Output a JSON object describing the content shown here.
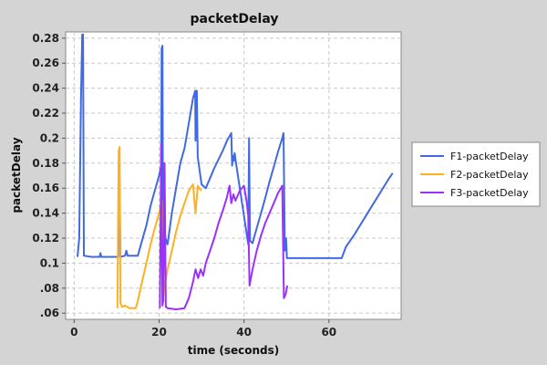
{
  "chart_data": {
    "type": "line",
    "title": "packetDelay",
    "xlabel": "time (seconds)",
    "ylabel": "packetDelay",
    "xlim": [
      -2,
      77
    ],
    "ylim": [
      0.055,
      0.285
    ],
    "x_ticks": [
      {
        "value": 0,
        "label": "0"
      },
      {
        "value": 20,
        "label": "20"
      },
      {
        "value": 40,
        "label": "40"
      },
      {
        "value": 60,
        "label": "60"
      }
    ],
    "y_ticks": [
      {
        "value": 0.06,
        "label": ".06"
      },
      {
        "value": 0.08,
        "label": ".08"
      },
      {
        "value": 0.1,
        "label": "0.1"
      },
      {
        "value": 0.12,
        "label": "0.12"
      },
      {
        "value": 0.14,
        "label": "0.14"
      },
      {
        "value": 0.16,
        "label": "0.16"
      },
      {
        "value": 0.18,
        "label": "0.18"
      },
      {
        "value": 0.2,
        "label": "0.2"
      },
      {
        "value": 0.22,
        "label": "0.22"
      },
      {
        "value": 0.24,
        "label": "0.24"
      },
      {
        "value": 0.26,
        "label": "0.26"
      },
      {
        "value": 0.28,
        "label": "0.28"
      }
    ],
    "grid": true,
    "legend_position": "right",
    "series": [
      {
        "name": "F1-packetDelay",
        "color": "#4169e1",
        "points": [
          [
            0.8,
            0.105
          ],
          [
            1.2,
            0.12
          ],
          [
            1.6,
            0.23
          ],
          [
            1.9,
            0.283
          ],
          [
            2.1,
            0.283
          ],
          [
            2.3,
            0.106
          ],
          [
            4,
            0.105
          ],
          [
            6,
            0.105
          ],
          [
            6.2,
            0.108
          ],
          [
            6.4,
            0.105
          ],
          [
            8,
            0.105
          ],
          [
            10,
            0.105
          ],
          [
            10.4,
            0.105
          ],
          [
            10.6,
            0.19
          ],
          [
            10.9,
            0.105
          ],
          [
            12,
            0.106
          ],
          [
            12.3,
            0.11
          ],
          [
            12.6,
            0.106
          ],
          [
            14,
            0.106
          ],
          [
            15,
            0.106
          ],
          [
            16,
            0.118
          ],
          [
            17,
            0.13
          ],
          [
            18,
            0.146
          ],
          [
            19,
            0.158
          ],
          [
            20,
            0.17
          ],
          [
            20.5,
            0.178
          ],
          [
            20.6,
            0.272
          ],
          [
            20.8,
            0.274
          ],
          [
            20.9,
            0.14
          ],
          [
            21.2,
            0.13
          ],
          [
            21.5,
            0.12
          ],
          [
            22,
            0.115
          ],
          [
            23,
            0.14
          ],
          [
            24,
            0.16
          ],
          [
            25,
            0.18
          ],
          [
            26,
            0.192
          ],
          [
            27,
            0.212
          ],
          [
            28,
            0.232
          ],
          [
            28.5,
            0.238
          ],
          [
            28.6,
            0.198
          ],
          [
            28.9,
            0.238
          ],
          [
            29.1,
            0.185
          ],
          [
            30,
            0.163
          ],
          [
            31,
            0.16
          ],
          [
            32,
            0.168
          ],
          [
            33,
            0.176
          ],
          [
            34,
            0.183
          ],
          [
            35,
            0.19
          ],
          [
            36,
            0.198
          ],
          [
            37,
            0.204
          ],
          [
            37.2,
            0.178
          ],
          [
            37.4,
            0.186
          ],
          [
            37.6,
            0.182
          ],
          [
            37.8,
            0.188
          ],
          [
            38,
            0.183
          ],
          [
            41,
            0.115
          ],
          [
            41.2,
            0.2
          ],
          [
            41.4,
            0.118
          ],
          [
            42,
            0.116
          ],
          [
            43,
            0.128
          ],
          [
            44,
            0.14
          ],
          [
            45,
            0.152
          ],
          [
            46,
            0.165
          ],
          [
            47,
            0.177
          ],
          [
            48,
            0.189
          ],
          [
            49,
            0.2
          ],
          [
            49.3,
            0.204
          ],
          [
            49.6,
            0.11
          ],
          [
            49.9,
            0.12
          ],
          [
            50.1,
            0.104
          ],
          [
            52,
            0.104
          ],
          [
            55,
            0.104
          ],
          [
            58,
            0.104
          ],
          [
            61,
            0.104
          ],
          [
            63,
            0.104
          ],
          [
            64,
            0.113
          ],
          [
            66,
            0.123
          ],
          [
            68,
            0.134
          ],
          [
            70,
            0.145
          ],
          [
            72,
            0.156
          ],
          [
            74,
            0.167
          ],
          [
            75,
            0.172
          ]
        ]
      },
      {
        "name": "F2-packetDelay",
        "color": "#ffb020",
        "points": [
          [
            10.2,
            0.064
          ],
          [
            10.5,
            0.19
          ],
          [
            10.7,
            0.193
          ],
          [
            10.9,
            0.068
          ],
          [
            11.3,
            0.065
          ],
          [
            12,
            0.066
          ],
          [
            13,
            0.064
          ],
          [
            14.5,
            0.064
          ],
          [
            15,
            0.07
          ],
          [
            16,
            0.085
          ],
          [
            17,
            0.1
          ],
          [
            18,
            0.115
          ],
          [
            19,
            0.128
          ],
          [
            20,
            0.14
          ],
          [
            20.7,
            0.15
          ],
          [
            20.9,
            0.07
          ],
          [
            21.2,
            0.08
          ],
          [
            22,
            0.095
          ],
          [
            23,
            0.11
          ],
          [
            24,
            0.125
          ],
          [
            25,
            0.138
          ],
          [
            26,
            0.148
          ],
          [
            27,
            0.158
          ],
          [
            28,
            0.163
          ],
          [
            28.6,
            0.14
          ],
          [
            29.1,
            0.162
          ],
          [
            29.4,
            0.16
          ],
          [
            30,
            0.158
          ]
        ]
      },
      {
        "name": "F3-packetDelay",
        "color": "#9b30ff",
        "points": [
          [
            20.2,
            0.064
          ],
          [
            20.5,
            0.195
          ],
          [
            20.8,
            0.066
          ],
          [
            21,
            0.07
          ],
          [
            21.3,
            0.18
          ],
          [
            21.6,
            0.065
          ],
          [
            22,
            0.064
          ],
          [
            24,
            0.063
          ],
          [
            26,
            0.064
          ],
          [
            27,
            0.072
          ],
          [
            28,
            0.085
          ],
          [
            28.6,
            0.095
          ],
          [
            29.2,
            0.088
          ],
          [
            29.8,
            0.095
          ],
          [
            30.4,
            0.09
          ],
          [
            31,
            0.1
          ],
          [
            32,
            0.11
          ],
          [
            33,
            0.12
          ],
          [
            34,
            0.132
          ],
          [
            35,
            0.142
          ],
          [
            36,
            0.153
          ],
          [
            36.6,
            0.162
          ],
          [
            37,
            0.148
          ],
          [
            37.5,
            0.155
          ],
          [
            38,
            0.15
          ],
          [
            39,
            0.158
          ],
          [
            40,
            0.162
          ],
          [
            40.6,
            0.15
          ],
          [
            41,
            0.138
          ],
          [
            41.3,
            0.082
          ],
          [
            42,
            0.095
          ],
          [
            43,
            0.11
          ],
          [
            44,
            0.122
          ],
          [
            45,
            0.132
          ],
          [
            46,
            0.14
          ],
          [
            47,
            0.148
          ],
          [
            48,
            0.156
          ],
          [
            49,
            0.162
          ],
          [
            49.4,
            0.072
          ],
          [
            49.8,
            0.075
          ],
          [
            50.2,
            0.082
          ]
        ]
      }
    ]
  }
}
